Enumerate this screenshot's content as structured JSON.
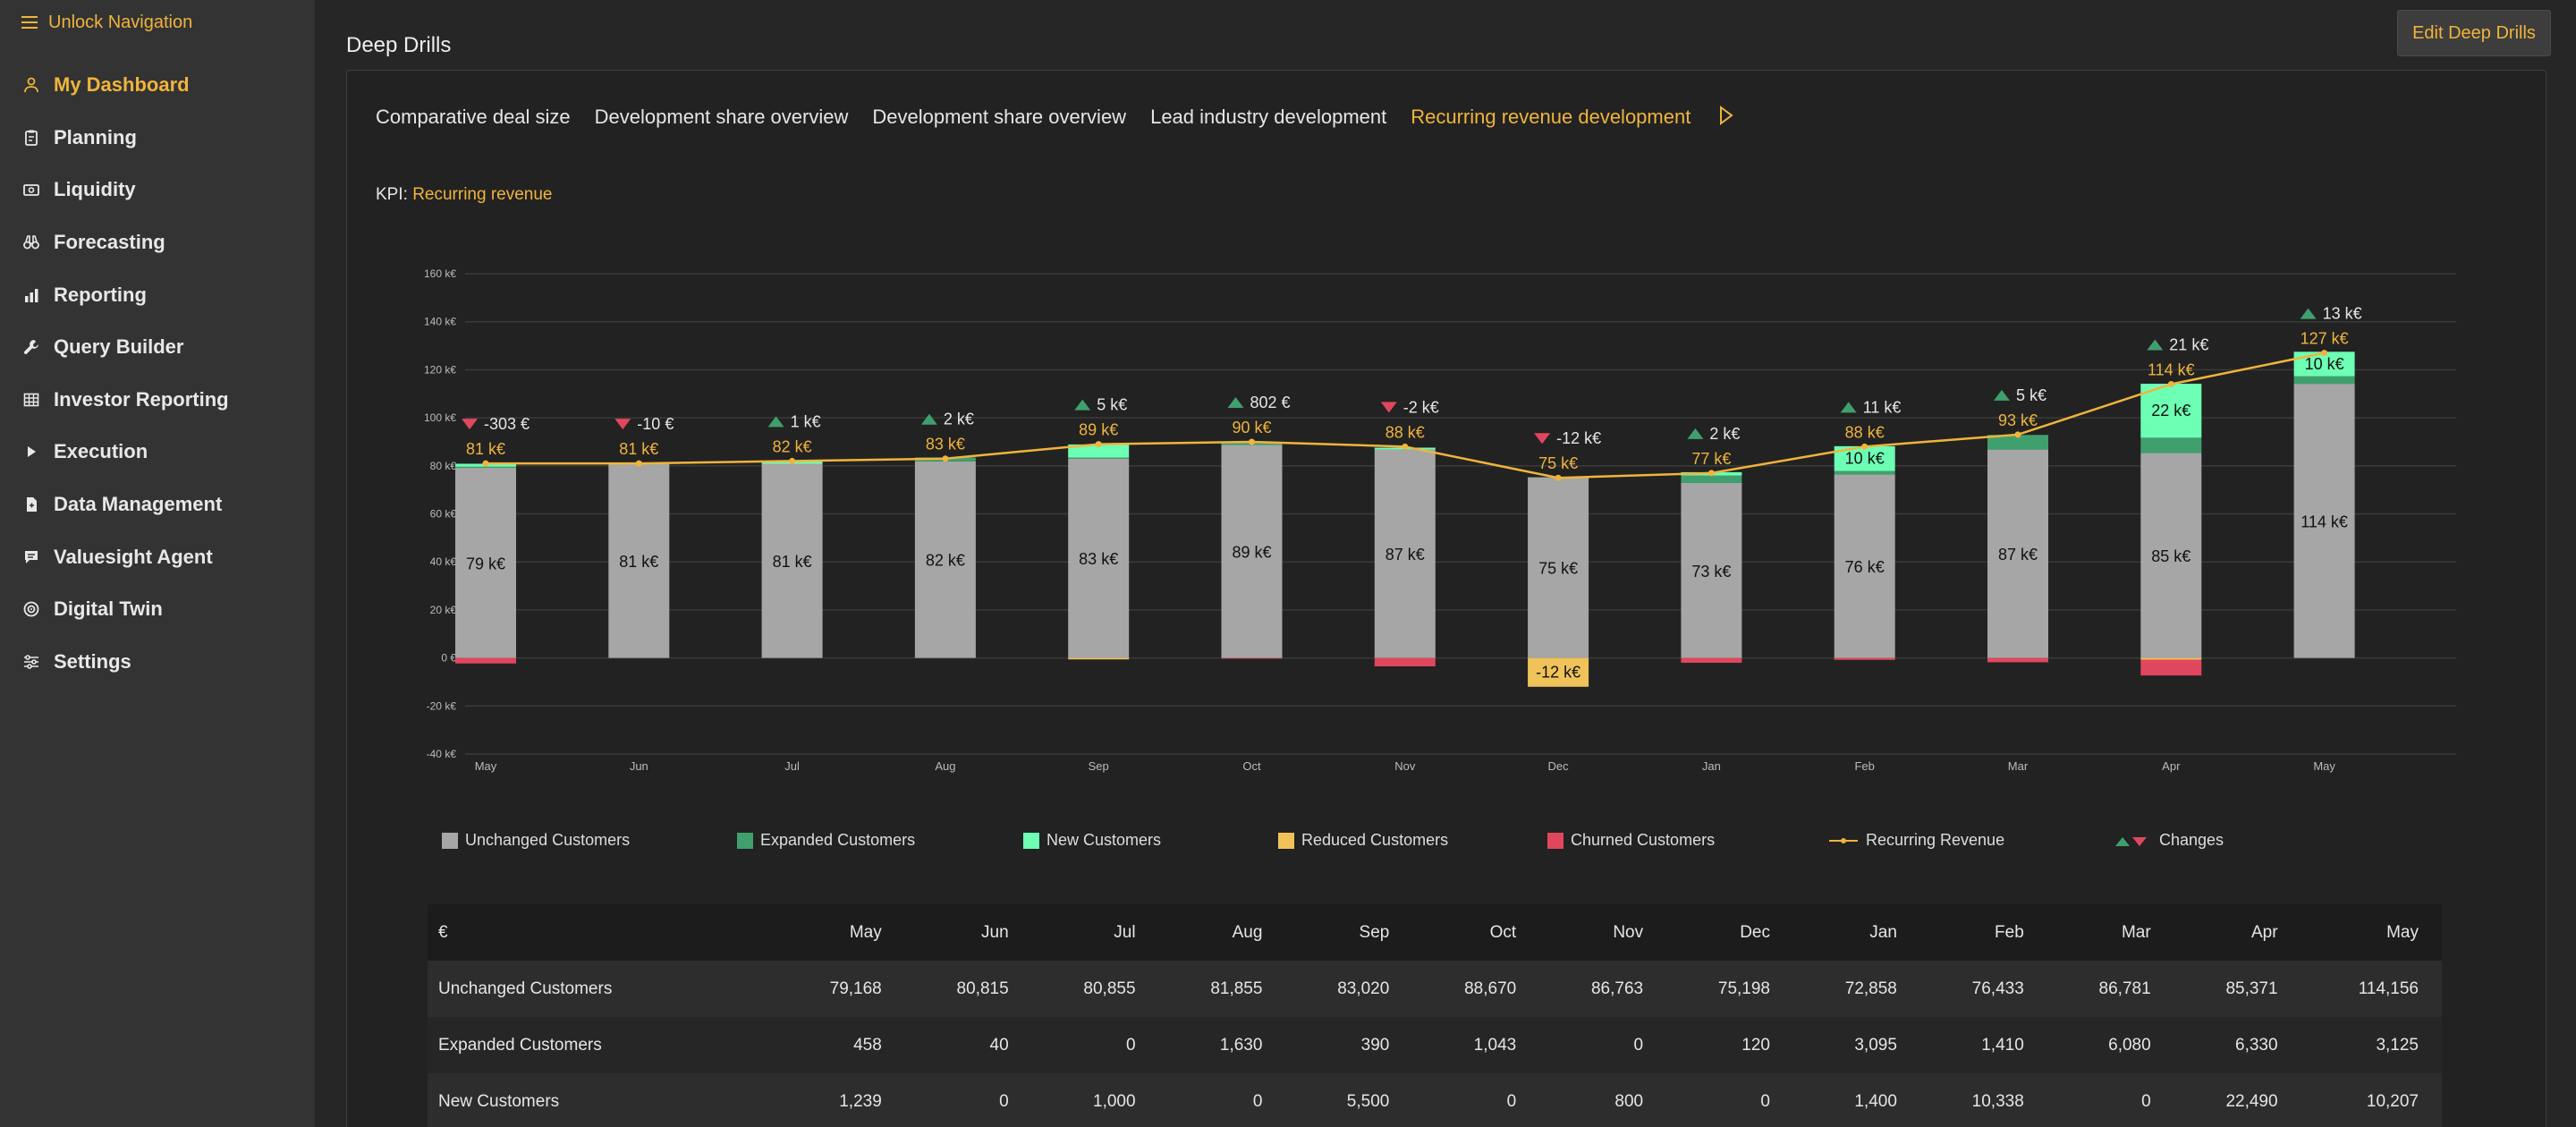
{
  "sidebar": {
    "unlock_label": "Unlock Navigation",
    "items": [
      {
        "label": "My Dashboard",
        "icon": "user-icon",
        "active": true
      },
      {
        "label": "Planning",
        "icon": "clipboard-icon"
      },
      {
        "label": "Liquidity",
        "icon": "cash-icon"
      },
      {
        "label": "Forecasting",
        "icon": "binoculars-icon"
      },
      {
        "label": "Reporting",
        "icon": "bar-chart-icon"
      },
      {
        "label": "Query Builder",
        "icon": "wrench-icon"
      },
      {
        "label": "Investor Reporting",
        "icon": "table-icon"
      },
      {
        "label": "Execution",
        "icon": "play-icon"
      },
      {
        "label": "Data Management",
        "icon": "file-icon"
      },
      {
        "label": "Valuesight Agent",
        "icon": "chat-icon"
      },
      {
        "label": "Digital Twin",
        "icon": "target-icon"
      },
      {
        "label": "Settings",
        "icon": "sliders-icon"
      }
    ]
  },
  "header": {
    "title": "Deep Drills",
    "edit_button": "Edit Deep Drills"
  },
  "tabs": [
    {
      "label": "Comparative deal size"
    },
    {
      "label": "Development share overview"
    },
    {
      "label": "Development share overview"
    },
    {
      "label": "Lead industry development"
    },
    {
      "label": "Recurring revenue development",
      "active": true
    }
  ],
  "kpi": {
    "prefix": "KPI:",
    "value": "Recurring revenue"
  },
  "colors": {
    "accent": "#f0b43c",
    "unchanged": "#a6a6a6",
    "expanded": "#3fa06e",
    "new": "#6dffb4",
    "reduced": "#f0c35a",
    "churned": "#e0475e",
    "up": "#3fa06e",
    "down": "#e0475e"
  },
  "chart_data": {
    "type": "bar",
    "stacked": true,
    "categories": [
      "May",
      "Jun",
      "Jul",
      "Aug",
      "Sep",
      "Oct",
      "Nov",
      "Dec",
      "Jan",
      "Feb",
      "Mar",
      "Apr",
      "May"
    ],
    "ylim": [
      -40,
      160
    ],
    "yticks": [
      "-40 k€",
      "-20 k€",
      "0 €",
      "20 k€",
      "40 k€",
      "60 k€",
      "80 k€",
      "100 k€",
      "120 k€",
      "140 k€",
      "160 k€"
    ],
    "ytick_values": [
      -40,
      -20,
      0,
      20,
      40,
      60,
      80,
      100,
      120,
      140,
      160
    ],
    "grid": true,
    "series": [
      {
        "name": "Unchanged Customers",
        "values": [
          79.168,
          80.815,
          80.855,
          81.855,
          83.02,
          88.67,
          86.763,
          75.198,
          72.858,
          76.433,
          86.781,
          85.371,
          114.156
        ],
        "labels": [
          "79 k€",
          "81 k€",
          "81 k€",
          "82 k€",
          "83 k€",
          "89 k€",
          "87 k€",
          "75 k€",
          "73 k€",
          "76 k€",
          "87 k€",
          "85 k€",
          "114 k€"
        ]
      },
      {
        "name": "Expanded Customers",
        "values": [
          0.458,
          0.04,
          0,
          1.63,
          0.39,
          1.043,
          0,
          0.12,
          3.095,
          1.41,
          6.08,
          6.33,
          3.125
        ]
      },
      {
        "name": "New Customers",
        "values": [
          1.239,
          0,
          1.0,
          0,
          5.5,
          0,
          0.8,
          0,
          1.4,
          10.338,
          0,
          22.49,
          10.207
        ],
        "labels": [
          "",
          "",
          "",
          "",
          "",
          "",
          "",
          "",
          "",
          "10 k€",
          "",
          "22 k€",
          "10 k€"
        ]
      },
      {
        "name": "Reduced Customers",
        "values": [
          0,
          0,
          0,
          0,
          -0.6,
          0,
          0,
          -12,
          0,
          0,
          0,
          -0.7,
          0
        ],
        "labels": [
          "",
          "",
          "",
          "",
          "",
          "",
          "",
          "-12 k€",
          "",
          "",
          "",
          "",
          ""
        ]
      },
      {
        "name": "Churned Customers",
        "values": [
          -2.3,
          0,
          0,
          0,
          0,
          -0.3,
          -3.5,
          0,
          -2.0,
          -0.8,
          -1.8,
          -6.6,
          0
        ]
      },
      {
        "name": "Recurring Revenue",
        "type": "line",
        "values": [
          81,
          81,
          82,
          83,
          89,
          90,
          88,
          75,
          77,
          88,
          93,
          114,
          127
        ],
        "labels": [
          "81 k€",
          "81 k€",
          "82 k€",
          "83 k€",
          "89 k€",
          "90 k€",
          "88 k€",
          "75 k€",
          "77 k€",
          "88 k€",
          "93 k€",
          "114 k€",
          "127 k€"
        ]
      },
      {
        "name": "Changes",
        "type": "marker",
        "directions": [
          "down",
          "down",
          "up",
          "up",
          "up",
          "up",
          "down",
          "down",
          "up",
          "up",
          "up",
          "up",
          "up"
        ],
        "labels": [
          "-303 €",
          "-10 €",
          "1 k€",
          "2 k€",
          "5 k€",
          "802 €",
          "-2 k€",
          "-12 k€",
          "2 k€",
          "11 k€",
          "5 k€",
          "21 k€",
          "13 k€"
        ]
      }
    ]
  },
  "legend": [
    {
      "label": "Unchanged Customers",
      "kind": "box",
      "color": "#a6a6a6"
    },
    {
      "label": "Expanded Customers",
      "kind": "box",
      "color": "#3fa06e"
    },
    {
      "label": "New Customers",
      "kind": "box",
      "color": "#6dffb4"
    },
    {
      "label": "Reduced Customers",
      "kind": "box",
      "color": "#f0c35a"
    },
    {
      "label": "Churned Customers",
      "kind": "box",
      "color": "#e0475e"
    },
    {
      "label": "Recurring Revenue",
      "kind": "line",
      "color": "#f0b43c"
    },
    {
      "label": "Changes",
      "kind": "triangles"
    }
  ],
  "table": {
    "corner": "€",
    "columns": [
      "May",
      "Jun",
      "Jul",
      "Aug",
      "Sep",
      "Oct",
      "Nov",
      "Dec",
      "Jan",
      "Feb",
      "Mar",
      "Apr",
      "May"
    ],
    "rows": [
      {
        "label": "Unchanged Customers",
        "values": [
          "79,168",
          "80,815",
          "80,855",
          "81,855",
          "83,020",
          "88,670",
          "86,763",
          "75,198",
          "72,858",
          "76,433",
          "86,781",
          "85,371",
          "114,156"
        ]
      },
      {
        "label": "Expanded Customers",
        "values": [
          "458",
          "40",
          "0",
          "1,630",
          "390",
          "1,043",
          "0",
          "120",
          "3,095",
          "1,410",
          "6,080",
          "6,330",
          "3,125"
        ]
      },
      {
        "label": "New Customers",
        "values": [
          "1,239",
          "0",
          "1,000",
          "0",
          "5,500",
          "0",
          "800",
          "0",
          "1,400",
          "10,338",
          "0",
          "22,490",
          "10,207"
        ]
      }
    ]
  }
}
